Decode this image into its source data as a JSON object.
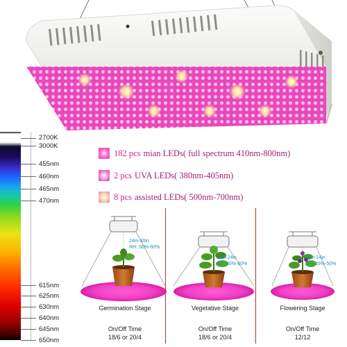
{
  "spectrum": {
    "labels": [
      "2700K",
      "3000K",
      "455nm",
      "460nm",
      "465nm",
      "470nm",
      "615nm",
      "625nm",
      "630nm",
      "640nm",
      "645nm",
      "650nm"
    ]
  },
  "legend": [
    {
      "count": "182 pcs",
      "text": "mian LEDs( full spectrum 410nm-800nm)"
    },
    {
      "count": "2 pcs",
      "text": "UVA LEDs( 380nm-405nm)"
    },
    {
      "count": "8 pcs",
      "text": "assisted LEDs( 500nm-700nm)"
    }
  ],
  "stages": [
    {
      "name": "Germination Stage",
      "distance_line1": "24in-30in",
      "distance_line2": "RH: 50%-60%",
      "time_title": "On/Off Time",
      "time_value": "18/6 or 20/4"
    },
    {
      "name": "Vegetative Stage",
      "distance_line1": "18in-24in",
      "distance_line2": "RH: 50%-60%",
      "time_title": "On/Off Time",
      "time_value": "18/6 or 20/4"
    },
    {
      "name": "Flowering Stage",
      "distance_line1": "12in-24in",
      "distance_line2": "RH: 35%-50%",
      "time_title": "On/Off Time",
      "time_value": "12/12"
    }
  ],
  "colors": {
    "led_panel": "#f03cbf",
    "housing": "#f4f4f2",
    "divider": "#c02828",
    "distance_text": "#1d8fbf",
    "legend_count": "#e0208c"
  }
}
